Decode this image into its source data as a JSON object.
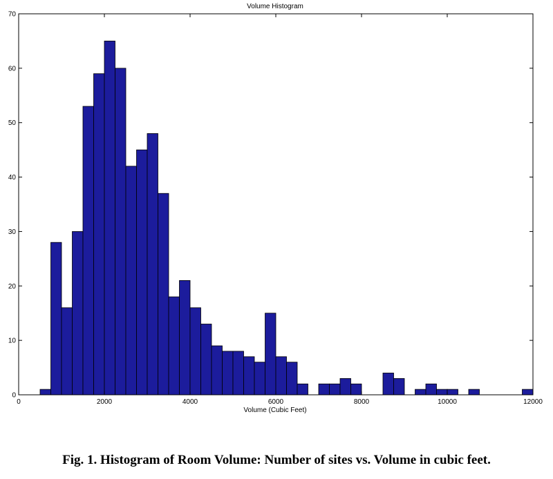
{
  "chart_data": {
    "type": "bar",
    "title": "Volume Histogram",
    "xlabel": "Volume (Cubic Feet)",
    "ylabel": "",
    "xlim": [
      0,
      12000
    ],
    "ylim": [
      0,
      70
    ],
    "bin_width": 250,
    "x_ticks": [
      0,
      2000,
      4000,
      6000,
      8000,
      10000,
      12000
    ],
    "y_ticks": [
      0,
      10,
      20,
      30,
      40,
      50,
      60,
      70
    ],
    "bins": [
      {
        "x": 625,
        "value": 1
      },
      {
        "x": 875,
        "value": 28
      },
      {
        "x": 1125,
        "value": 16
      },
      {
        "x": 1375,
        "value": 30
      },
      {
        "x": 1625,
        "value": 53
      },
      {
        "x": 1875,
        "value": 59
      },
      {
        "x": 2125,
        "value": 65
      },
      {
        "x": 2375,
        "value": 60
      },
      {
        "x": 2625,
        "value": 42
      },
      {
        "x": 2875,
        "value": 45
      },
      {
        "x": 3125,
        "value": 48
      },
      {
        "x": 3375,
        "value": 37
      },
      {
        "x": 3625,
        "value": 18
      },
      {
        "x": 3875,
        "value": 21
      },
      {
        "x": 4125,
        "value": 16
      },
      {
        "x": 4375,
        "value": 13
      },
      {
        "x": 4625,
        "value": 9
      },
      {
        "x": 4875,
        "value": 8
      },
      {
        "x": 5125,
        "value": 8
      },
      {
        "x": 5375,
        "value": 7
      },
      {
        "x": 5625,
        "value": 6
      },
      {
        "x": 5875,
        "value": 15
      },
      {
        "x": 6125,
        "value": 7
      },
      {
        "x": 6375,
        "value": 6
      },
      {
        "x": 6625,
        "value": 2
      },
      {
        "x": 7125,
        "value": 2
      },
      {
        "x": 7375,
        "value": 2
      },
      {
        "x": 7625,
        "value": 3
      },
      {
        "x": 7875,
        "value": 2
      },
      {
        "x": 8625,
        "value": 4
      },
      {
        "x": 8875,
        "value": 3
      },
      {
        "x": 9375,
        "value": 1
      },
      {
        "x": 9625,
        "value": 2
      },
      {
        "x": 9875,
        "value": 1
      },
      {
        "x": 10125,
        "value": 1
      },
      {
        "x": 10625,
        "value": 1
      },
      {
        "x": 11875,
        "value": 1
      }
    ],
    "bar_color": "#1c1c9c",
    "edge_color": "#000000",
    "grid": false
  },
  "caption": "Fig. 1. Histogram of Room Volume: Number of sites vs. Volume in cubic feet."
}
